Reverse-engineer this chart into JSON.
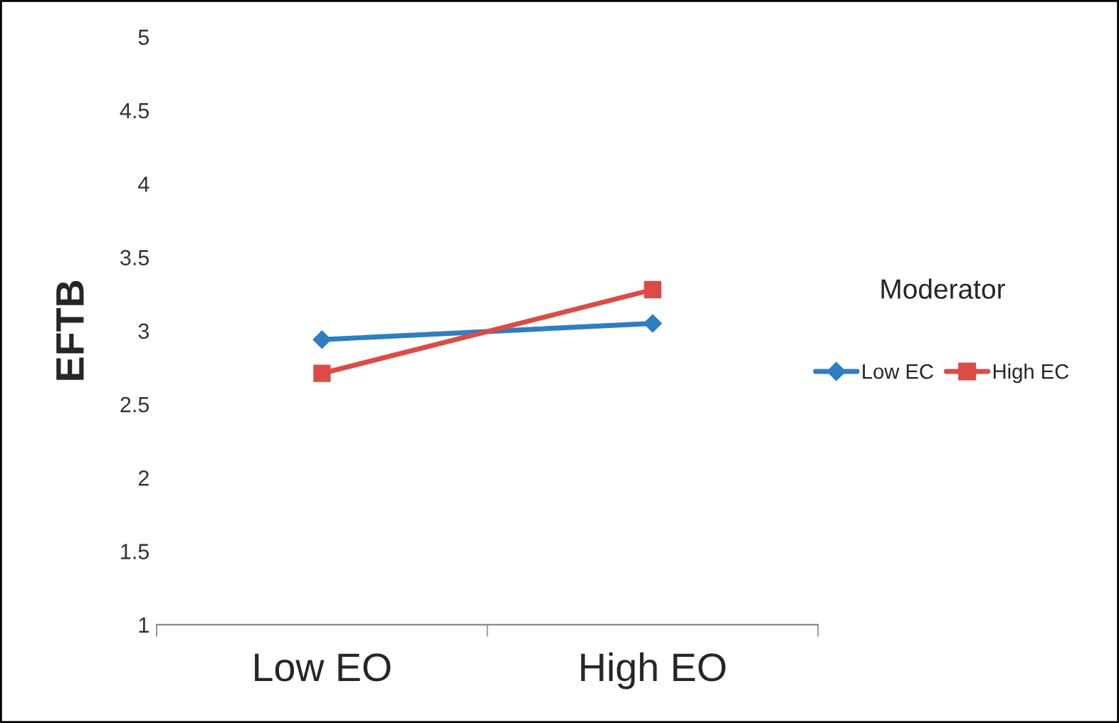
{
  "chart_data": {
    "type": "line",
    "ylabel": "EFTB",
    "legend_title": "Moderator",
    "categories": [
      "Low EO",
      "High EO"
    ],
    "series": [
      {
        "name": "Low EC",
        "color": "#2e7ec1",
        "marker": "diamond",
        "values": [
          2.94,
          3.05
        ]
      },
      {
        "name": "High EC",
        "color": "#dc4b45",
        "marker": "square",
        "values": [
          2.71,
          3.28
        ]
      }
    ],
    "ylim": [
      1,
      5
    ],
    "yticks": [
      1,
      1.5,
      2,
      2.5,
      3,
      3.5,
      4,
      4.5,
      5
    ],
    "grid": false,
    "legend": "right"
  }
}
